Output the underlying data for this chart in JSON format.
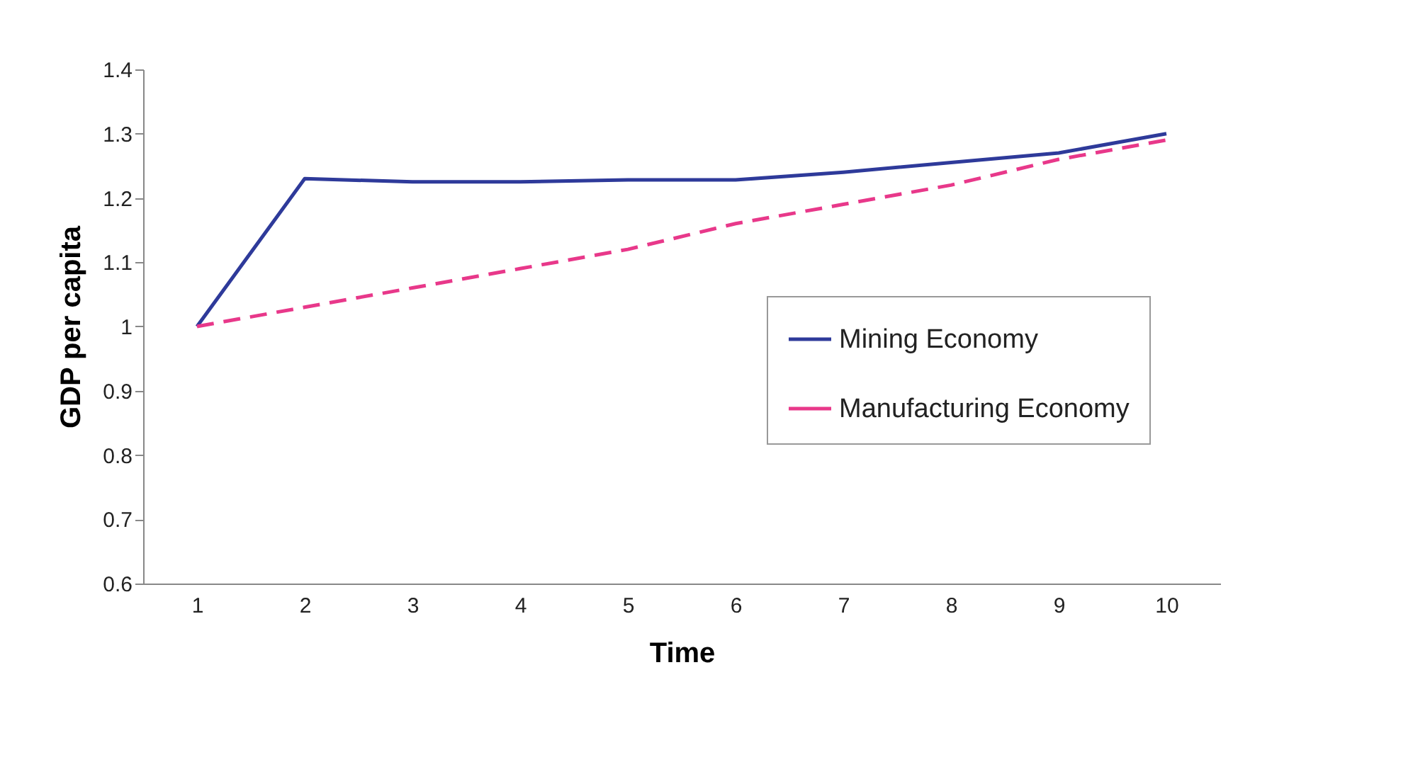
{
  "chart_data": {
    "type": "line",
    "xlabel": "Time",
    "ylabel": "GDP per capita",
    "categories": [
      "1",
      "2",
      "3",
      "4",
      "5",
      "6",
      "7",
      "8",
      "9",
      "10"
    ],
    "series": [
      {
        "name": "Mining Economy",
        "color": "#2e3a9a",
        "line_style": "solid",
        "values": [
          1.0,
          1.23,
          1.225,
          1.225,
          1.228,
          1.228,
          1.24,
          1.255,
          1.27,
          1.3
        ]
      },
      {
        "name": "Manufacturing Economy",
        "color": "#e8388a",
        "line_style": "dashed",
        "values": [
          1.0,
          1.03,
          1.06,
          1.09,
          1.12,
          1.16,
          1.19,
          1.22,
          1.26,
          1.29
        ]
      }
    ],
    "ylim": [
      0.6,
      1.4
    ],
    "yticks": [
      0.6,
      0.7,
      0.8,
      0.9,
      1,
      1.1,
      1.2,
      1.3,
      1.4
    ],
    "legend": "right",
    "marker": "none",
    "grid": false
  }
}
